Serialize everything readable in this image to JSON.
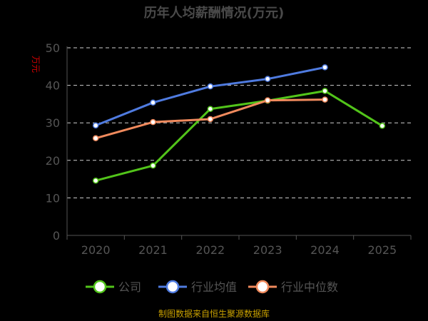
{
  "chart_data": {
    "type": "line",
    "title": "历年人均薪酬情况(万元)",
    "ylabel": "万元",
    "xlabel": "",
    "categories": [
      "2020",
      "2021",
      "2022",
      "2023",
      "2024",
      "2025"
    ],
    "ylim": [
      0,
      50
    ],
    "yticks": [
      0,
      10,
      20,
      30,
      40,
      50
    ],
    "grid": true,
    "legend_position": "bottom",
    "series": [
      {
        "name": "公司",
        "color": "#52c41a",
        "values": [
          14.6,
          18.6,
          33.7,
          35.9,
          38.5,
          29.2
        ]
      },
      {
        "name": "行业均值",
        "color": "#4f7be0",
        "values": [
          29.3,
          35.4,
          39.7,
          41.7,
          44.8,
          null
        ]
      },
      {
        "name": "行业中位数",
        "color": "#f08a5d",
        "values": [
          25.9,
          30.2,
          31.0,
          36.0,
          36.2,
          null
        ]
      }
    ],
    "source": "制图数据来自恒生聚源数据库"
  }
}
